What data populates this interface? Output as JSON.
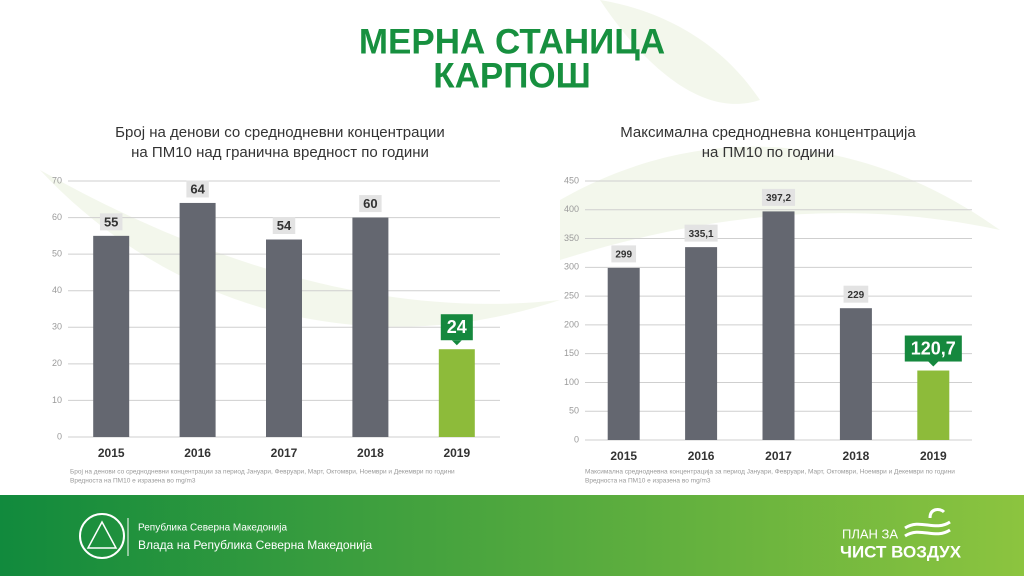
{
  "title": [
    "МЕРНА СТАНИЦА",
    "КАРПОШ"
  ],
  "chart_data": [
    {
      "type": "bar",
      "title": [
        "Број на денови со среднодневни концентрации",
        "на ПМ10 над гранична вредност по години"
      ],
      "categories": [
        "2015",
        "2016",
        "2017",
        "2018",
        "2019"
      ],
      "values": [
        55,
        64,
        54,
        60,
        24
      ],
      "colors": [
        "#646770",
        "#646770",
        "#646770",
        "#646770",
        "#8dbb3a"
      ],
      "label_colors": [
        "#e3e3e3",
        "#e3e3e3",
        "#e3e3e3",
        "#e3e3e3",
        "#15883e"
      ],
      "ylim": [
        0,
        70
      ],
      "yticks": [
        0,
        10,
        20,
        30,
        40,
        50,
        60,
        70
      ],
      "grid": true,
      "notes": [
        "Број на денови со среднодневни концентрации за период Јануари, Февруари, Март, Октомври, Ноември и Декември по години",
        "Вредноста на ПМ10 е изразена во mg/m3"
      ]
    },
    {
      "type": "bar",
      "title": [
        "Максимална среднодневна концентрација",
        "на ПМ10 по години"
      ],
      "categories": [
        "2015",
        "2016",
        "2017",
        "2018",
        "2019"
      ],
      "values": [
        299,
        335.1,
        397.2,
        229,
        120.7
      ],
      "value_labels": [
        "299",
        "335,1",
        "397,2",
        "229",
        "120,7"
      ],
      "colors": [
        "#646770",
        "#646770",
        "#646770",
        "#646770",
        "#8dbb3a"
      ],
      "label_colors": [
        "#e3e3e3",
        "#e3e3e3",
        "#e3e3e3",
        "#e3e3e3",
        "#15883e"
      ],
      "ylim": [
        0,
        450
      ],
      "yticks": [
        0,
        50,
        100,
        150,
        200,
        250,
        300,
        350,
        400,
        450
      ],
      "grid": true,
      "notes": [
        "Максимална среднодневна концентрација за период Јануари, Февруари, Март, Октомври, Ноември и Декември по години",
        "Вредноста на ПМ10 е изразена во mg/m3"
      ]
    }
  ],
  "footer": {
    "country": "Република Северна Македонија",
    "government": "Влада на Република Северна Македонија",
    "plan": [
      "ПЛАН ЗА",
      "ЧИСТ ВОЗДУХ"
    ]
  }
}
